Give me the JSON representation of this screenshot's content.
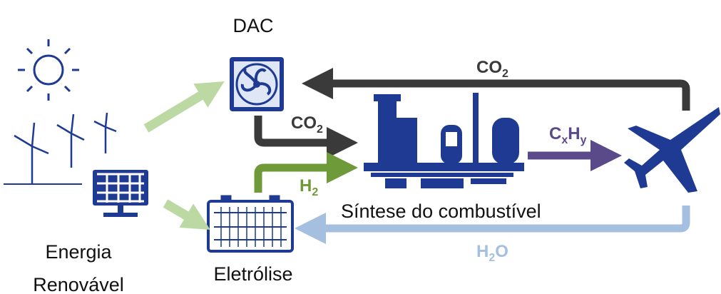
{
  "labels": {
    "dac": "DAC",
    "co2_top": [
      "CO",
      "2"
    ],
    "co2_mid": [
      "CO",
      "2"
    ],
    "cxhy": [
      "C",
      "x",
      "H",
      "y"
    ],
    "h2": [
      "H",
      "2"
    ],
    "synthesis": "Síntese do combustível",
    "h2o": [
      "H",
      "2",
      "O"
    ],
    "energy": [
      "Energia",
      "Renovável"
    ],
    "electrolysis": "Eletrólise"
  }
}
